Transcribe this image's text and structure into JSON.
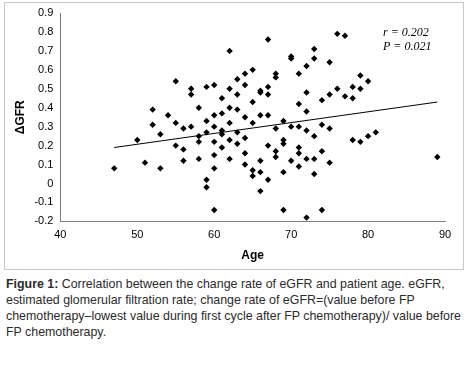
{
  "chart_data": {
    "type": "scatter",
    "x_label": "Age",
    "y_label": "ΔGFR",
    "xlim": [
      40,
      90
    ],
    "xticks": [
      40,
      50,
      60,
      70,
      80,
      90
    ],
    "ylim": [
      -0.2,
      0.9
    ],
    "yticks": [
      -0.2,
      -0.1,
      0,
      0.1,
      0.2,
      0.3,
      0.4,
      0.5,
      0.6,
      0.7,
      0.8,
      0.9
    ],
    "grid": false,
    "annotations": [
      "r = 0.202",
      "P = 0.021"
    ],
    "series": [
      {
        "type": "scatter",
        "marker": "diamond",
        "color": "#000000",
        "x": [
          47,
          50,
          51,
          52,
          52,
          53,
          53,
          54,
          55,
          55,
          55,
          56,
          56,
          56,
          57,
          57,
          57,
          58,
          58,
          58,
          58,
          59,
          59,
          59,
          59,
          59,
          60,
          60,
          60,
          60,
          60,
          60,
          60,
          61,
          61,
          61,
          61,
          61,
          62,
          62,
          62,
          62,
          62,
          62,
          63,
          63,
          63,
          63,
          63,
          64,
          64,
          64,
          64,
          64,
          64,
          65,
          65,
          65,
          65,
          65,
          66,
          66,
          66,
          66,
          66,
          66,
          67,
          67,
          67,
          67,
          67,
          67,
          68,
          68,
          68,
          68,
          68,
          69,
          69,
          69,
          69,
          69,
          70,
          70,
          70,
          70,
          71,
          71,
          71,
          71,
          71,
          71,
          72,
          72,
          72,
          72,
          72,
          72,
          73,
          73,
          73,
          73,
          73,
          74,
          74,
          74,
          74,
          75,
          75,
          75,
          75,
          76,
          76,
          77,
          77,
          78,
          78,
          78,
          79,
          79,
          79,
          80,
          80,
          81,
          89
        ],
        "values": [
          0.08,
          0.23,
          0.11,
          0.39,
          0.31,
          0.08,
          0.26,
          0.36,
          0.32,
          0.2,
          0.54,
          0.29,
          0.12,
          0.18,
          0.3,
          0.47,
          0.5,
          0.22,
          0.25,
          0.13,
          0.4,
          0.02,
          -0.02,
          0.27,
          0.33,
          0.51,
          -0.14,
          0.08,
          0.15,
          0.22,
          0.3,
          0.36,
          0.52,
          0.19,
          0.26,
          0.28,
          0.37,
          0.45,
          0.13,
          0.23,
          0.32,
          0.7,
          0.5,
          0.4,
          0.21,
          0.27,
          0.39,
          0.47,
          0.55,
          0.1,
          0.16,
          0.24,
          0.35,
          0.58,
          0.52,
          0.04,
          0.07,
          0.32,
          0.43,
          0.6,
          -0.04,
          0.06,
          0.12,
          0.36,
          0.49,
          0.48,
          0.02,
          0.2,
          0.36,
          0.47,
          0.51,
          0.76,
          0.14,
          0.29,
          0.17,
          0.58,
          0.56,
          -0.14,
          0.06,
          0.21,
          0.33,
          0.23,
          0.12,
          0.67,
          0.3,
          0.66,
          0.09,
          0.42,
          0.19,
          0.58,
          0.3,
          0.16,
          -0.18,
          0.13,
          0.38,
          0.48,
          0.28,
          0.62,
          0.25,
          0.13,
          0.71,
          0.05,
          0.66,
          0.31,
          0.44,
          -0.14,
          0.17,
          0.47,
          0.29,
          0.64,
          0.11,
          0.79,
          0.5,
          0.78,
          0.46,
          0.51,
          0.23,
          0.45,
          0.57,
          0.5,
          0.22,
          0.54,
          0.25,
          0.27,
          0.14
        ]
      },
      {
        "type": "line",
        "line_style": "solid",
        "color": "#000000",
        "x": [
          47,
          89
        ],
        "values": [
          0.19,
          0.43
        ]
      }
    ]
  },
  "caption": {
    "label": "Figure 1:",
    "text": "Correlation between the change rate of eGFR and patient age. eGFR, estimated glomerular filtration rate; change rate of eGFR=(value before FP chemotherapy–lowest value during first cycle after FP chemotherapy)/ value before FP chemotherapy."
  }
}
